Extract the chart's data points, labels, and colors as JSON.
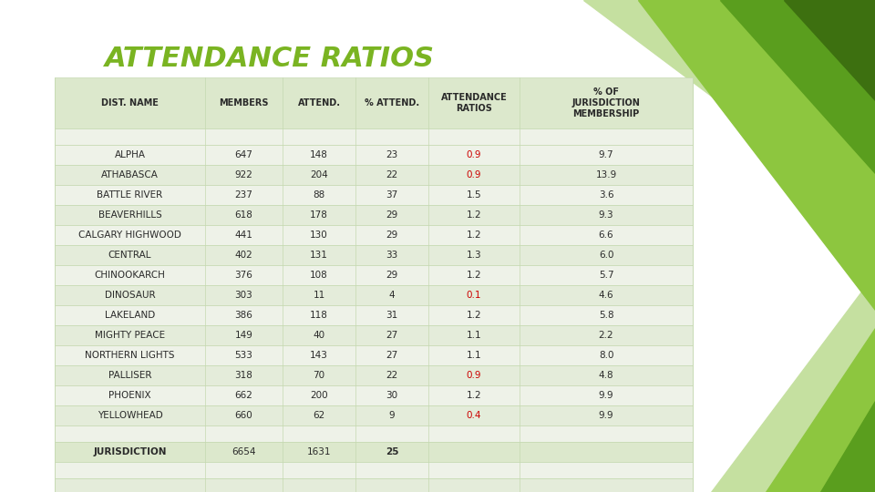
{
  "title": "ATTENDANCE RATIOS",
  "title_color": "#7ab422",
  "background_color": "#ffffff",
  "columns": [
    "DIST. NAME",
    "MEMBERS",
    "ATTEND.",
    "% ATTEND.",
    "ATTENDANCE\nRATIOS",
    "% OF\nJURISDICTION\nMEMBERSHIP"
  ],
  "rows": [
    [
      "ALPHA",
      "647",
      "148",
      "23",
      "0.9",
      "9.7"
    ],
    [
      "ATHABASCA",
      "922",
      "204",
      "22",
      "0.9",
      "13.9"
    ],
    [
      "BATTLE RIVER",
      "237",
      "88",
      "37",
      "1.5",
      "3.6"
    ],
    [
      "BEAVERHILLS",
      "618",
      "178",
      "29",
      "1.2",
      "9.3"
    ],
    [
      "CALGARY HIGHWOOD",
      "441",
      "130",
      "29",
      "1.2",
      "6.6"
    ],
    [
      "CENTRAL",
      "402",
      "131",
      "33",
      "1.3",
      "6.0"
    ],
    [
      "CHINOOKARCH",
      "376",
      "108",
      "29",
      "1.2",
      "5.7"
    ],
    [
      "DINOSAUR",
      "303",
      "11",
      "4",
      "0.1",
      "4.6"
    ],
    [
      "LAKELAND",
      "386",
      "118",
      "31",
      "1.2",
      "5.8"
    ],
    [
      "MIGHTY PEACE",
      "149",
      "40",
      "27",
      "1.1",
      "2.2"
    ],
    [
      "NORTHERN LIGHTS",
      "533",
      "143",
      "27",
      "1.1",
      "8.0"
    ],
    [
      "PALLISER",
      "318",
      "70",
      "22",
      "0.9",
      "4.8"
    ],
    [
      "PHOENIX",
      "662",
      "200",
      "30",
      "1.2",
      "9.9"
    ],
    [
      "YELLOWHEAD",
      "660",
      "62",
      "9",
      "0.4",
      "9.9"
    ]
  ],
  "footer_row": [
    "JURISDICTION",
    "6654",
    "1631",
    "25",
    "",
    ""
  ],
  "red_rows_col4": [
    0,
    1,
    7,
    11,
    13
  ],
  "table_bg_even": "#eef2e8",
  "table_bg_odd": "#e4ecda",
  "header_bg": "#dce8cc",
  "grid_color": "#c5d9b0",
  "text_color": "#2a2a2a",
  "red_color": "#cc0000",
  "tri_light": "#8dc63f",
  "tri_mid": "#5a9e1e",
  "tri_dark": "#3d7010",
  "tri_pale": "#c5e0a0"
}
